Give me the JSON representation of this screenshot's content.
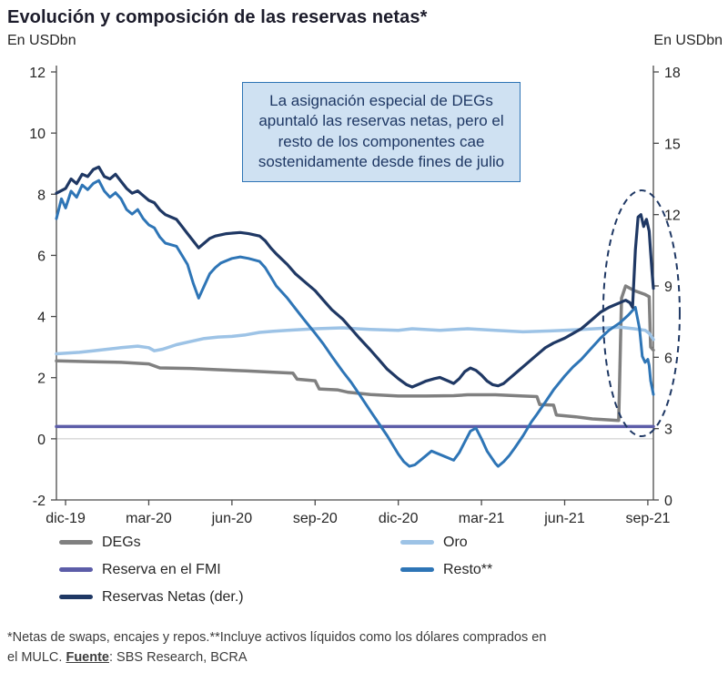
{
  "annotation": {
    "text": "La asignación especial de DEGs apuntaló las reservas netas, pero el resto de los componentes cae sostenidamente desde fines de julio",
    "bg": "#cfe1f2",
    "border": "#2e74b5",
    "text_color": "#1f3864"
  },
  "footnote": {
    "text_before_source": "*Netas de swaps, encajes y repos.**Incluye activos líquidos como los dólares comprados en el MULC. ",
    "source_label": "Fuente",
    "text_after_source": ": SBS Research, BCRA"
  },
  "chart_data": {
    "type": "line",
    "title": "Evolución y composición de las reservas netas*",
    "x_unit": "months_from_dec_2019",
    "x_range": [
      -0.33,
      21.2
    ],
    "x_ticks": [
      {
        "m": 0,
        "label": "dic-19"
      },
      {
        "m": 3,
        "label": "mar-20"
      },
      {
        "m": 6,
        "label": "jun-20"
      },
      {
        "m": 9,
        "label": "sep-20"
      },
      {
        "m": 12,
        "label": "dic-20"
      },
      {
        "m": 15,
        "label": "mar-21"
      },
      {
        "m": 18,
        "label": "jun-21"
      },
      {
        "m": 21,
        "label": "sep-21"
      }
    ],
    "left_axis": {
      "unit": "En USDbn",
      "min": -2,
      "max": 12,
      "ticks": [
        12,
        10,
        8,
        6,
        4,
        2,
        0,
        -2
      ]
    },
    "right_axis": {
      "unit": "En USDbn",
      "min": 0,
      "max": 18,
      "ticks": [
        18,
        15,
        12,
        9,
        6,
        3,
        0
      ]
    },
    "gridlines_left": [
      0
    ],
    "axis_color": "#4a4a4a",
    "grid_color": "#c6c6c6",
    "legend_position": "bottom",
    "series": [
      {
        "name": "DEGs",
        "axis": "left",
        "color": "#808080",
        "width": 3.5,
        "points": [
          [
            -0.33,
            2.55
          ],
          [
            1,
            2.52
          ],
          [
            2,
            2.5
          ],
          [
            3,
            2.45
          ],
          [
            3.4,
            2.32
          ],
          [
            4.5,
            2.3
          ],
          [
            5.5,
            2.26
          ],
          [
            6.5,
            2.22
          ],
          [
            7.5,
            2.18
          ],
          [
            8.2,
            2.15
          ],
          [
            8.35,
            1.95
          ],
          [
            9,
            1.9
          ],
          [
            9.15,
            1.63
          ],
          [
            9.8,
            1.6
          ],
          [
            10.2,
            1.52
          ],
          [
            11,
            1.45
          ],
          [
            12,
            1.4
          ],
          [
            13,
            1.4
          ],
          [
            14,
            1.41
          ],
          [
            14.5,
            1.44
          ],
          [
            15.5,
            1.44
          ],
          [
            16.5,
            1.4
          ],
          [
            17,
            1.38
          ],
          [
            17.1,
            1.12
          ],
          [
            17.6,
            1.1
          ],
          [
            17.7,
            0.78
          ],
          [
            18.4,
            0.72
          ],
          [
            19,
            0.65
          ],
          [
            19.95,
            0.6
          ],
          [
            20.05,
            4.6
          ],
          [
            20.2,
            5.0
          ],
          [
            20.5,
            4.85
          ],
          [
            20.9,
            4.72
          ],
          [
            21.05,
            4.65
          ],
          [
            21.1,
            3.0
          ],
          [
            21.2,
            2.9
          ]
        ]
      },
      {
        "name": "Oro",
        "axis": "left",
        "color": "#9dc3e6",
        "width": 3.5,
        "points": [
          [
            -0.33,
            2.78
          ],
          [
            0.5,
            2.83
          ],
          [
            1,
            2.88
          ],
          [
            2,
            2.98
          ],
          [
            2.6,
            3.03
          ],
          [
            3,
            2.98
          ],
          [
            3.2,
            2.88
          ],
          [
            3.5,
            2.93
          ],
          [
            4,
            3.08
          ],
          [
            4.5,
            3.18
          ],
          [
            5,
            3.28
          ],
          [
            5.5,
            3.33
          ],
          [
            6,
            3.35
          ],
          [
            6.5,
            3.4
          ],
          [
            7,
            3.48
          ],
          [
            7.5,
            3.52
          ],
          [
            8,
            3.55
          ],
          [
            9,
            3.6
          ],
          [
            10,
            3.63
          ],
          [
            10.5,
            3.6
          ],
          [
            11,
            3.58
          ],
          [
            12,
            3.55
          ],
          [
            12.5,
            3.6
          ],
          [
            13.5,
            3.55
          ],
          [
            14.5,
            3.6
          ],
          [
            15.5,
            3.55
          ],
          [
            16.5,
            3.5
          ],
          [
            17.5,
            3.53
          ],
          [
            18.5,
            3.57
          ],
          [
            19.5,
            3.62
          ],
          [
            20,
            3.65
          ],
          [
            20.5,
            3.6
          ],
          [
            20.9,
            3.55
          ],
          [
            21.05,
            3.45
          ],
          [
            21.2,
            3.25
          ]
        ]
      },
      {
        "name": "Reserva en el FMI",
        "axis": "left",
        "color": "#5c5da8",
        "width": 3.5,
        "points": [
          [
            -0.33,
            0.4
          ],
          [
            10,
            0.4
          ],
          [
            21.2,
            0.4
          ]
        ]
      },
      {
        "name": "Resto**",
        "axis": "left",
        "color": "#2e75b6",
        "width": 3,
        "points": [
          [
            -0.33,
            7.2
          ],
          [
            -0.15,
            7.85
          ],
          [
            0,
            7.55
          ],
          [
            0.2,
            8.1
          ],
          [
            0.4,
            7.9
          ],
          [
            0.6,
            8.3
          ],
          [
            0.8,
            8.15
          ],
          [
            1,
            8.35
          ],
          [
            1.2,
            8.45
          ],
          [
            1.4,
            8.1
          ],
          [
            1.6,
            7.9
          ],
          [
            1.8,
            8.05
          ],
          [
            2,
            7.85
          ],
          [
            2.2,
            7.5
          ],
          [
            2.4,
            7.35
          ],
          [
            2.6,
            7.5
          ],
          [
            2.8,
            7.2
          ],
          [
            3,
            7.0
          ],
          [
            3.2,
            6.9
          ],
          [
            3.4,
            6.6
          ],
          [
            3.6,
            6.4
          ],
          [
            4,
            6.3
          ],
          [
            4.2,
            6.0
          ],
          [
            4.4,
            5.7
          ],
          [
            4.6,
            5.1
          ],
          [
            4.8,
            4.6
          ],
          [
            5,
            5.0
          ],
          [
            5.2,
            5.4
          ],
          [
            5.4,
            5.6
          ],
          [
            5.6,
            5.75
          ],
          [
            6,
            5.9
          ],
          [
            6.3,
            5.95
          ],
          [
            6.6,
            5.9
          ],
          [
            7,
            5.8
          ],
          [
            7.2,
            5.6
          ],
          [
            7.4,
            5.3
          ],
          [
            7.6,
            5.0
          ],
          [
            8,
            4.6
          ],
          [
            8.3,
            4.25
          ],
          [
            8.6,
            3.9
          ],
          [
            9,
            3.45
          ],
          [
            9.3,
            3.1
          ],
          [
            9.6,
            2.7
          ],
          [
            10,
            2.2
          ],
          [
            10.3,
            1.85
          ],
          [
            10.6,
            1.45
          ],
          [
            11,
            0.9
          ],
          [
            11.3,
            0.5
          ],
          [
            11.6,
            0.1
          ],
          [
            12,
            -0.5
          ],
          [
            12.2,
            -0.75
          ],
          [
            12.4,
            -0.9
          ],
          [
            12.6,
            -0.85
          ],
          [
            13,
            -0.55
          ],
          [
            13.2,
            -0.4
          ],
          [
            13.6,
            -0.55
          ],
          [
            14,
            -0.7
          ],
          [
            14.2,
            -0.45
          ],
          [
            14.4,
            -0.1
          ],
          [
            14.6,
            0.25
          ],
          [
            14.8,
            0.35
          ],
          [
            15,
            0.0
          ],
          [
            15.2,
            -0.4
          ],
          [
            15.5,
            -0.8
          ],
          [
            15.6,
            -0.9
          ],
          [
            15.8,
            -0.75
          ],
          [
            16,
            -0.55
          ],
          [
            16.2,
            -0.3
          ],
          [
            16.5,
            0.1
          ],
          [
            16.8,
            0.55
          ],
          [
            17,
            0.8
          ],
          [
            17.3,
            1.2
          ],
          [
            17.6,
            1.6
          ],
          [
            18,
            2.05
          ],
          [
            18.3,
            2.35
          ],
          [
            18.6,
            2.6
          ],
          [
            19,
            3.0
          ],
          [
            19.3,
            3.3
          ],
          [
            19.6,
            3.55
          ],
          [
            20,
            3.8
          ],
          [
            20.3,
            4.05
          ],
          [
            20.55,
            4.3
          ],
          [
            20.7,
            3.6
          ],
          [
            20.8,
            2.7
          ],
          [
            20.9,
            2.5
          ],
          [
            21,
            2.6
          ],
          [
            21.05,
            2.4
          ],
          [
            21.1,
            1.9
          ],
          [
            21.2,
            1.45
          ]
        ]
      },
      {
        "name": "Reservas Netas (der.)",
        "axis": "right",
        "color": "#1f3864",
        "width": 3.2,
        "points": [
          [
            -0.33,
            12.9
          ],
          [
            0,
            13.1
          ],
          [
            0.2,
            13.5
          ],
          [
            0.4,
            13.3
          ],
          [
            0.6,
            13.7
          ],
          [
            0.8,
            13.6
          ],
          [
            1,
            13.9
          ],
          [
            1.2,
            14.0
          ],
          [
            1.4,
            13.6
          ],
          [
            1.6,
            13.5
          ],
          [
            1.8,
            13.7
          ],
          [
            2,
            13.4
          ],
          [
            2.2,
            13.1
          ],
          [
            2.4,
            12.9
          ],
          [
            2.6,
            13.0
          ],
          [
            2.8,
            12.8
          ],
          [
            3,
            12.6
          ],
          [
            3.2,
            12.5
          ],
          [
            3.4,
            12.2
          ],
          [
            3.6,
            12.0
          ],
          [
            4,
            11.8
          ],
          [
            4.2,
            11.5
          ],
          [
            4.4,
            11.2
          ],
          [
            4.6,
            10.9
          ],
          [
            4.8,
            10.6
          ],
          [
            5,
            10.8
          ],
          [
            5.2,
            11.0
          ],
          [
            5.4,
            11.1
          ],
          [
            5.8,
            11.2
          ],
          [
            6.3,
            11.25
          ],
          [
            6.6,
            11.2
          ],
          [
            7,
            11.1
          ],
          [
            7.2,
            10.9
          ],
          [
            7.4,
            10.6
          ],
          [
            7.6,
            10.35
          ],
          [
            8,
            9.9
          ],
          [
            8.3,
            9.5
          ],
          [
            8.6,
            9.2
          ],
          [
            9,
            8.8
          ],
          [
            9.3,
            8.4
          ],
          [
            9.6,
            8.0
          ],
          [
            10,
            7.6
          ],
          [
            10.3,
            7.2
          ],
          [
            10.6,
            6.8
          ],
          [
            11,
            6.3
          ],
          [
            11.3,
            5.9
          ],
          [
            11.6,
            5.5
          ],
          [
            12,
            5.1
          ],
          [
            12.3,
            4.85
          ],
          [
            12.5,
            4.75
          ],
          [
            12.8,
            4.9
          ],
          [
            13,
            5.0
          ],
          [
            13.3,
            5.1
          ],
          [
            13.5,
            5.15
          ],
          [
            13.8,
            5.0
          ],
          [
            14,
            4.9
          ],
          [
            14.2,
            5.1
          ],
          [
            14.4,
            5.4
          ],
          [
            14.6,
            5.55
          ],
          [
            14.8,
            5.45
          ],
          [
            15,
            5.25
          ],
          [
            15.2,
            5.0
          ],
          [
            15.4,
            4.85
          ],
          [
            15.6,
            4.8
          ],
          [
            15.8,
            4.9
          ],
          [
            16,
            5.1
          ],
          [
            16.3,
            5.4
          ],
          [
            16.6,
            5.7
          ],
          [
            17,
            6.1
          ],
          [
            17.3,
            6.4
          ],
          [
            17.6,
            6.6
          ],
          [
            18,
            6.8
          ],
          [
            18.3,
            7.0
          ],
          [
            18.6,
            7.2
          ],
          [
            19,
            7.6
          ],
          [
            19.3,
            7.9
          ],
          [
            19.6,
            8.1
          ],
          [
            20,
            8.3
          ],
          [
            20.2,
            8.4
          ],
          [
            20.35,
            8.3
          ],
          [
            20.45,
            8.1
          ],
          [
            20.55,
            10.5
          ],
          [
            20.65,
            11.9
          ],
          [
            20.75,
            12.0
          ],
          [
            20.85,
            11.5
          ],
          [
            20.95,
            11.8
          ],
          [
            21.05,
            11.3
          ],
          [
            21.1,
            10.4
          ],
          [
            21.15,
            9.6
          ],
          [
            21.2,
            8.9
          ]
        ]
      }
    ],
    "highlight_ellipse": {
      "x_month": 20.77,
      "y_right": 7.85,
      "rx_months": 1.38,
      "ry_right": 5.17,
      "color": "#1f3864",
      "dash": "7 5"
    }
  }
}
